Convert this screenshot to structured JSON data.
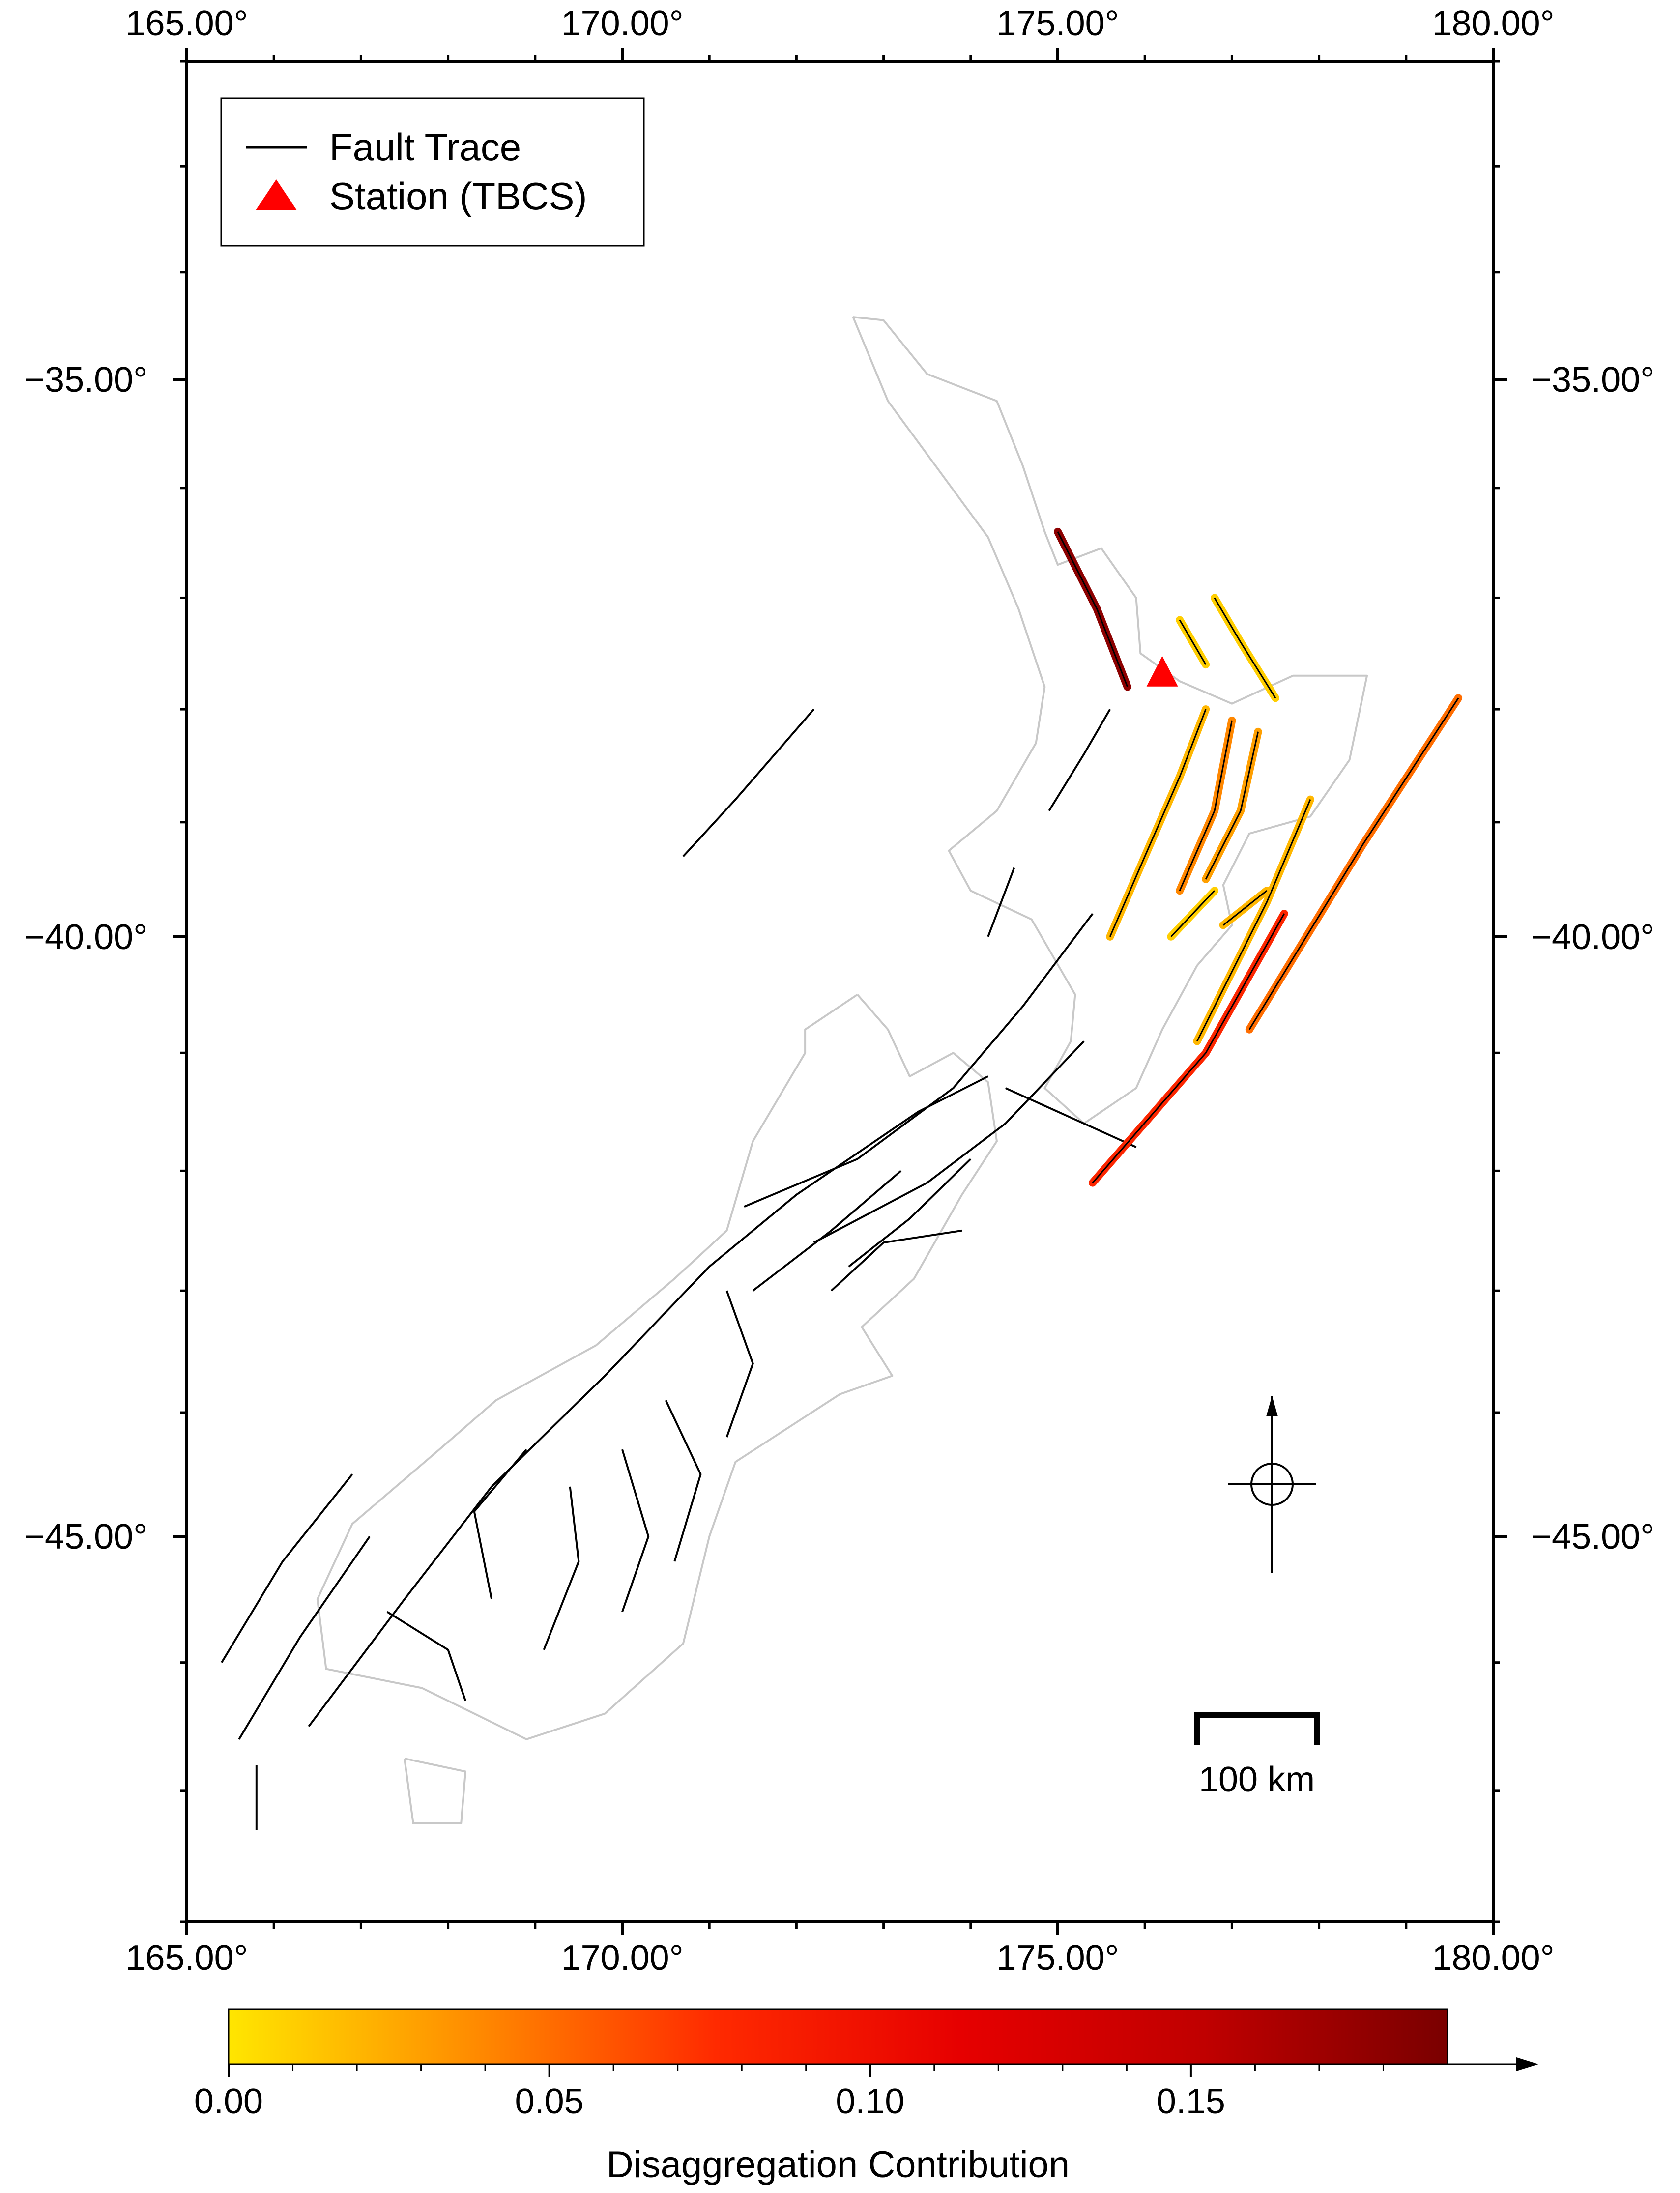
{
  "map": {
    "lon_range": [
      165.0,
      180.0
    ],
    "lat_range": [
      -48.0,
      -32.0
    ],
    "projection": "Mercator",
    "x_ticks": [
      {
        "value": 165,
        "label": "165.00°"
      },
      {
        "value": 170,
        "label": "170.00°"
      },
      {
        "value": 175,
        "label": "175.00°"
      },
      {
        "value": 180,
        "label": "180.00°"
      }
    ],
    "y_ticks": [
      {
        "value": -35,
        "label": "−35.00°"
      },
      {
        "value": -40,
        "label": "−40.00°"
      },
      {
        "value": -45,
        "label": "−45.00°"
      }
    ],
    "minor_tick_step_deg": 1,
    "coastline_color": "#c8c8c8",
    "fault_color": "#000000"
  },
  "legend": {
    "position": "top-left",
    "items": [
      {
        "label": "Fault Trace",
        "symbol": "line",
        "color": "#000000"
      },
      {
        "label": "Station (TBCS)",
        "symbol": "triangle",
        "color": "#ff0000"
      }
    ]
  },
  "station": {
    "name": "TBCS",
    "lon": 176.2,
    "lat": -37.7,
    "color": "#ff0000"
  },
  "scale_bar": {
    "label": "100 km",
    "km": 100
  },
  "compass": {
    "symbol": "north-arrow"
  },
  "colorbar": {
    "title": "Disaggregation Contribution",
    "min": 0.0,
    "max": 0.19,
    "colors": [
      "#ffe600",
      "#ff8c00",
      "#ff2a00",
      "#e60000",
      "#c00000",
      "#7a0000"
    ],
    "ticks": [
      {
        "value": 0.0,
        "label": "0.00"
      },
      {
        "value": 0.05,
        "label": "0.05"
      },
      {
        "value": 0.1,
        "label": "0.10"
      },
      {
        "value": 0.15,
        "label": "0.15"
      }
    ],
    "overflow_arrow": true
  },
  "coastlines": [
    [
      [
        172.65,
        -34.42
      ],
      [
        173.0,
        -34.45
      ],
      [
        173.5,
        -34.95
      ],
      [
        174.3,
        -35.2
      ],
      [
        174.6,
        -35.8
      ],
      [
        174.85,
        -36.4
      ],
      [
        175.0,
        -36.7
      ],
      [
        175.5,
        -36.55
      ],
      [
        175.9,
        -37.0
      ],
      [
        175.95,
        -37.5
      ],
      [
        176.4,
        -37.75
      ],
      [
        177.0,
        -37.95
      ],
      [
        177.7,
        -37.7
      ],
      [
        178.55,
        -37.7
      ],
      [
        178.35,
        -38.45
      ],
      [
        177.9,
        -38.95
      ],
      [
        177.2,
        -39.1
      ],
      [
        176.9,
        -39.55
      ],
      [
        177.0,
        -39.9
      ],
      [
        176.6,
        -40.25
      ],
      [
        176.2,
        -40.8
      ],
      [
        175.9,
        -41.3
      ],
      [
        175.3,
        -41.6
      ],
      [
        174.85,
        -41.3
      ],
      [
        175.15,
        -40.9
      ],
      [
        175.2,
        -40.5
      ],
      [
        174.7,
        -39.85
      ],
      [
        174.0,
        -39.6
      ],
      [
        173.75,
        -39.25
      ],
      [
        174.3,
        -38.9
      ],
      [
        174.75,
        -38.3
      ],
      [
        174.85,
        -37.8
      ],
      [
        174.55,
        -37.1
      ],
      [
        174.2,
        -36.45
      ],
      [
        173.6,
        -35.8
      ],
      [
        173.05,
        -35.2
      ],
      [
        172.65,
        -34.42
      ]
    ],
    [
      [
        172.7,
        -40.5
      ],
      [
        173.05,
        -40.8
      ],
      [
        173.3,
        -41.2
      ],
      [
        173.8,
        -41.0
      ],
      [
        174.2,
        -41.25
      ],
      [
        174.3,
        -41.75
      ],
      [
        173.9,
        -42.2
      ],
      [
        173.35,
        -42.9
      ],
      [
        172.75,
        -43.3
      ],
      [
        173.1,
        -43.7
      ],
      [
        172.5,
        -43.85
      ],
      [
        171.3,
        -44.4
      ],
      [
        171.0,
        -45.0
      ],
      [
        170.7,
        -45.85
      ],
      [
        169.8,
        -46.4
      ],
      [
        168.9,
        -46.6
      ],
      [
        168.3,
        -46.4
      ],
      [
        167.7,
        -46.2
      ],
      [
        166.6,
        -46.05
      ],
      [
        166.5,
        -45.5
      ],
      [
        166.9,
        -44.9
      ],
      [
        167.9,
        -44.3
      ],
      [
        168.55,
        -43.9
      ],
      [
        169.7,
        -43.45
      ],
      [
        170.6,
        -42.9
      ],
      [
        171.2,
        -42.5
      ],
      [
        171.5,
        -41.75
      ],
      [
        172.1,
        -41.0
      ],
      [
        172.1,
        -40.8
      ],
      [
        172.7,
        -40.5
      ]
    ],
    [
      [
        167.5,
        -46.75
      ],
      [
        168.2,
        -46.85
      ],
      [
        168.15,
        -47.25
      ],
      [
        167.6,
        -47.25
      ],
      [
        167.5,
        -46.75
      ]
    ]
  ],
  "faults": [
    [
      [
        165.4,
        -46.0
      ],
      [
        166.1,
        -45.2
      ],
      [
        166.9,
        -44.5
      ]
    ],
    [
      [
        165.6,
        -46.6
      ],
      [
        166.3,
        -45.8
      ],
      [
        167.1,
        -45.0
      ]
    ],
    [
      [
        166.4,
        -46.5
      ],
      [
        167.5,
        -45.5
      ],
      [
        168.5,
        -44.6
      ],
      [
        169.8,
        -43.7
      ],
      [
        171.0,
        -42.8
      ],
      [
        172.0,
        -42.2
      ],
      [
        173.4,
        -41.5
      ],
      [
        174.2,
        -41.2
      ]
    ],
    [
      [
        171.4,
        -42.3
      ],
      [
        172.7,
        -41.9
      ],
      [
        173.8,
        -41.3
      ],
      [
        174.6,
        -40.6
      ],
      [
        175.4,
        -39.8
      ]
    ],
    [
      [
        172.2,
        -42.6
      ],
      [
        173.5,
        -42.1
      ],
      [
        174.4,
        -41.6
      ],
      [
        175.3,
        -40.9
      ]
    ],
    [
      [
        171.5,
        -43.0
      ],
      [
        172.4,
        -42.5
      ],
      [
        173.2,
        -42.0
      ]
    ],
    [
      [
        172.6,
        -42.8
      ],
      [
        173.3,
        -42.4
      ],
      [
        174.0,
        -41.9
      ]
    ],
    [
      [
        168.5,
        -45.5
      ],
      [
        168.3,
        -44.8
      ],
      [
        168.9,
        -44.3
      ]
    ],
    [
      [
        169.1,
        -45.9
      ],
      [
        169.5,
        -45.2
      ],
      [
        169.4,
        -44.6
      ]
    ],
    [
      [
        170.0,
        -45.6
      ],
      [
        170.3,
        -45.0
      ],
      [
        170.0,
        -44.3
      ]
    ],
    [
      [
        170.6,
        -45.2
      ],
      [
        170.9,
        -44.5
      ],
      [
        170.5,
        -43.9
      ]
    ],
    [
      [
        171.2,
        -44.2
      ],
      [
        171.5,
        -43.6
      ],
      [
        171.2,
        -43.0
      ]
    ],
    [
      [
        172.4,
        -43.0
      ],
      [
        173.0,
        -42.6
      ],
      [
        173.9,
        -42.5
      ]
    ],
    [
      [
        174.4,
        -41.3
      ],
      [
        175.3,
        -41.6
      ],
      [
        175.9,
        -41.8
      ]
    ],
    [
      [
        168.2,
        -46.3
      ],
      [
        168.0,
        -45.9
      ],
      [
        167.3,
        -45.6
      ]
    ],
    [
      [
        165.8,
        -46.8
      ],
      [
        165.8,
        -47.3
      ]
    ],
    [
      [
        170.7,
        -39.3
      ],
      [
        171.3,
        -38.8
      ],
      [
        172.2,
        -38.0
      ]
    ],
    [
      [
        174.2,
        -40.0
      ],
      [
        174.5,
        -39.4
      ]
    ],
    [
      [
        174.9,
        -38.9
      ],
      [
        175.3,
        -38.4
      ],
      [
        175.6,
        -38.0
      ]
    ]
  ],
  "hazard_faults": [
    {
      "contribution": 0.18,
      "coords": [
        [
          175.0,
          -36.4
        ],
        [
          175.45,
          -37.1
        ],
        [
          175.8,
          -37.8
        ]
      ]
    },
    {
      "contribution": 0.02,
      "coords": [
        [
          176.7,
          -38.0
        ],
        [
          176.4,
          -38.6
        ],
        [
          176.0,
          -39.3
        ],
        [
          175.6,
          -40.0
        ]
      ]
    },
    {
      "contribution": 0.04,
      "coords": [
        [
          177.0,
          -38.1
        ],
        [
          176.8,
          -38.9
        ],
        [
          176.4,
          -39.6
        ]
      ]
    },
    {
      "contribution": 0.03,
      "coords": [
        [
          177.3,
          -38.2
        ],
        [
          177.1,
          -38.9
        ],
        [
          176.7,
          -39.5
        ]
      ]
    },
    {
      "contribution": 0.05,
      "coords": [
        [
          179.6,
          -37.9
        ],
        [
          178.5,
          -39.2
        ],
        [
          177.2,
          -40.8
        ]
      ]
    },
    {
      "contribution": 0.08,
      "coords": [
        [
          177.6,
          -39.8
        ],
        [
          176.7,
          -41.0
        ],
        [
          175.4,
          -42.1
        ]
      ]
    },
    {
      "contribution": 0.02,
      "coords": [
        [
          177.9,
          -38.8
        ],
        [
          177.4,
          -39.7
        ],
        [
          176.6,
          -40.9
        ]
      ]
    },
    {
      "contribution": 0.01,
      "coords": [
        [
          176.8,
          -37.0
        ],
        [
          177.1,
          -37.4
        ],
        [
          177.5,
          -37.9
        ]
      ]
    },
    {
      "contribution": 0.01,
      "coords": [
        [
          176.4,
          -37.2
        ],
        [
          176.7,
          -37.6
        ]
      ]
    },
    {
      "contribution": 0.01,
      "coords": [
        [
          176.8,
          -39.6
        ],
        [
          176.3,
          -40.0
        ]
      ]
    },
    {
      "contribution": 0.02,
      "coords": [
        [
          177.4,
          -39.6
        ],
        [
          176.9,
          -39.9
        ]
      ]
    }
  ]
}
